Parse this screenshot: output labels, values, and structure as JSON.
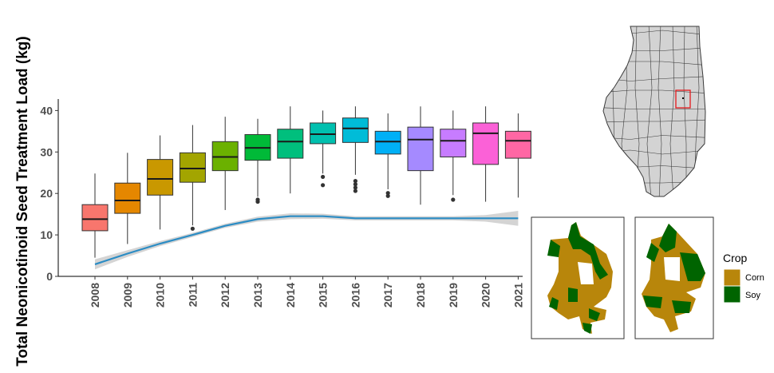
{
  "chart_data": [
    {
      "type": "box",
      "ylabel": "Total Neonicotinoid Seed Treatment Load (kg)",
      "xlabel": "",
      "ylim": [
        0,
        42
      ],
      "yticks": [
        0,
        10,
        20,
        30,
        40
      ],
      "grid": false,
      "categories": [
        "2008",
        "2009",
        "2010",
        "2011",
        "2012",
        "2013",
        "2014",
        "2015",
        "2016",
        "2017",
        "2018",
        "2019",
        "2020",
        "2021"
      ],
      "colors": [
        "#F8766D",
        "#E58700",
        "#C99800",
        "#A3A500",
        "#6BB100",
        "#00BA38",
        "#00BF7D",
        "#00C0AF",
        "#00BCD8",
        "#00B0F6",
        "#A58AFF",
        "#C77CFF",
        "#FB61D7",
        "#FF67A4"
      ],
      "boxes": [
        {
          "min": 4.5,
          "q1": 11.0,
          "median": 13.8,
          "q3": 17.3,
          "max": 24.8,
          "outliers": []
        },
        {
          "min": 7.8,
          "q1": 15.2,
          "median": 18.3,
          "q3": 22.5,
          "max": 29.8,
          "outliers": []
        },
        {
          "min": 11.3,
          "q1": 19.6,
          "median": 23.5,
          "q3": 28.2,
          "max": 34.0,
          "outliers": []
        },
        {
          "min": 12.3,
          "q1": 22.7,
          "median": 26.0,
          "q3": 29.8,
          "max": 36.5,
          "outliers": [
            11.5
          ]
        },
        {
          "min": 16.0,
          "q1": 25.5,
          "median": 28.8,
          "q3": 32.5,
          "max": 38.5,
          "outliers": []
        },
        {
          "min": 19.2,
          "q1": 28.0,
          "median": 31.0,
          "q3": 34.2,
          "max": 38.0,
          "outliers": [
            18.0,
            18.5
          ]
        },
        {
          "min": 20.0,
          "q1": 28.5,
          "median": 32.5,
          "q3": 35.5,
          "max": 41.0,
          "outliers": []
        },
        {
          "min": 24.8,
          "q1": 32.0,
          "median": 34.3,
          "q3": 37.0,
          "max": 40.0,
          "outliers": [
            22.0,
            24.0
          ]
        },
        {
          "min": 24.5,
          "q1": 32.3,
          "median": 35.7,
          "q3": 38.2,
          "max": 41.0,
          "outliers": [
            20.6,
            21.4,
            22.2,
            23.0
          ]
        },
        {
          "min": 21.0,
          "q1": 29.5,
          "median": 32.5,
          "q3": 35.0,
          "max": 39.3,
          "outliers": [
            19.4,
            20.1
          ]
        },
        {
          "min": 17.3,
          "q1": 25.5,
          "median": 33.0,
          "q3": 36.0,
          "max": 41.0,
          "outliers": []
        },
        {
          "min": 19.6,
          "q1": 28.8,
          "median": 32.7,
          "q3": 35.5,
          "max": 40.0,
          "outliers": [
            18.5
          ]
        },
        {
          "min": 18.0,
          "q1": 27.0,
          "median": 34.5,
          "q3": 37.0,
          "max": 41.0,
          "outliers": []
        },
        {
          "min": 19.0,
          "q1": 28.5,
          "median": 32.7,
          "q3": 35.0,
          "max": 39.3,
          "outliers": []
        }
      ],
      "trend": {
        "color": "#2b8cc4",
        "band_color": "#cccccc",
        "values": [
          2.9,
          5.5,
          7.9,
          10.0,
          12.2,
          13.8,
          14.5,
          14.5,
          14.0,
          14.0,
          14.0,
          14.0,
          14.0,
          14.0
        ],
        "band_half_width": [
          1.2,
          0.8,
          0.6,
          0.5,
          0.5,
          0.6,
          0.7,
          0.6,
          0.5,
          0.5,
          0.5,
          0.5,
          0.8,
          1.8
        ]
      }
    },
    {
      "type": "map",
      "map_fill": "#d3d3d3",
      "map_stroke": "#3a3a3a",
      "highlight_color": "#e41a1c"
    },
    {
      "type": "map",
      "panels": 2,
      "legend": {
        "title": "Crop",
        "items": [
          {
            "label": "Corn",
            "color": "#b8860b"
          },
          {
            "label": "Soy",
            "color": "#006400"
          }
        ]
      }
    }
  ]
}
